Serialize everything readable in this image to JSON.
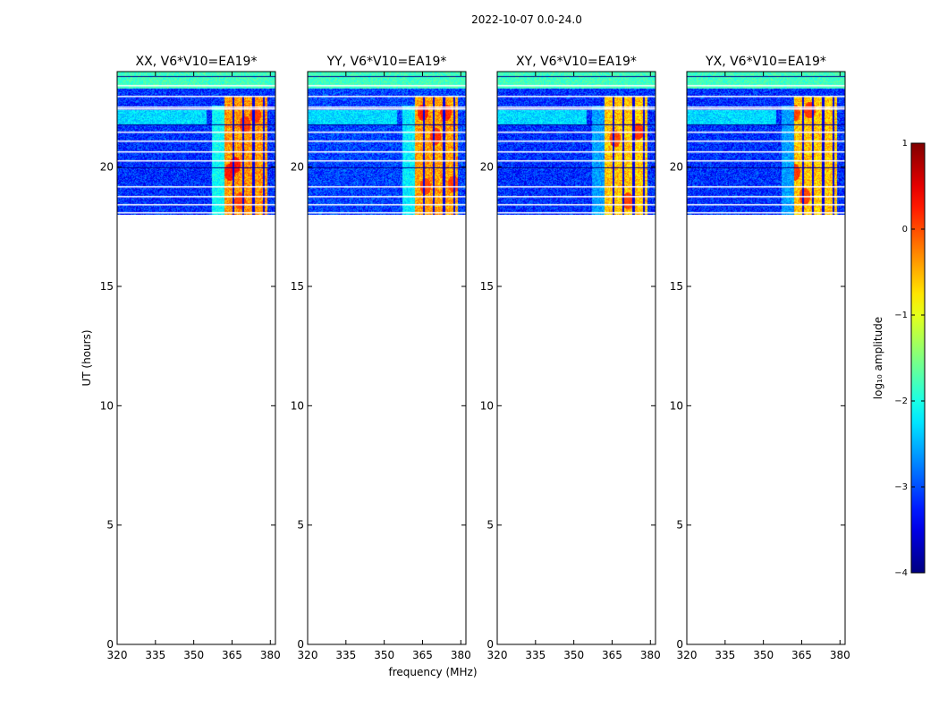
{
  "chart_data": {
    "type": "heatmap",
    "suptitle": "2022-10-07 0.0-24.0",
    "xlabel": "frequency (MHz)",
    "ylabel": "UT (hours)",
    "xlim": [
      320,
      382
    ],
    "ylim": [
      0,
      24
    ],
    "xticks": [
      320,
      335,
      350,
      365,
      380
    ],
    "yticks": [
      0,
      5,
      10,
      15,
      20
    ],
    "data_rows_hours": [
      18.0,
      24.0
    ],
    "panels": [
      {
        "title": "XX, V6*V10=EA19*",
        "background_log10": -3.15,
        "band_lowfreq_log10": -2.1,
        "band_highfreq_log10": -0.35,
        "hot_spots": [
          [
            366,
            20.1,
            0.3
          ],
          [
            364,
            19.8,
            0.25
          ],
          [
            370,
            21.8,
            0.1
          ],
          [
            374,
            22.2,
            0.1
          ],
          [
            368,
            18.6,
            0.05
          ]
        ]
      },
      {
        "title": "YY, V6*V10=EA19*",
        "background_log10": -3.05,
        "band_lowfreq_log10": -2.2,
        "band_highfreq_log10": -0.4,
        "hot_spots": [
          [
            365,
            22.3,
            0.2
          ],
          [
            370,
            21.3,
            0.15
          ],
          [
            374,
            22.3,
            0.2
          ],
          [
            377,
            19.3,
            0.05
          ],
          [
            366,
            19.2,
            0.05
          ]
        ]
      },
      {
        "title": "XY, V6*V10=EA19*",
        "background_log10": -3.15,
        "band_lowfreq_log10": -2.6,
        "band_highfreq_log10": -0.6,
        "hot_spots": [
          [
            366,
            21.2,
            0.05
          ],
          [
            371,
            18.6,
            0.05
          ],
          [
            375,
            21.5,
            0.1
          ]
        ]
      },
      {
        "title": "YX, V6*V10=EA19*",
        "background_log10": -3.15,
        "band_lowfreq_log10": -2.6,
        "band_highfreq_log10": -0.6,
        "hot_spots": [
          [
            362,
            22.3,
            0.05
          ],
          [
            368,
            22.4,
            0.1
          ],
          [
            362,
            19.8,
            0.1
          ],
          [
            366,
            18.8,
            0.05
          ]
        ]
      }
    ],
    "colorbar": {
      "label": "log₁₀ amplitude",
      "colormap": "jet",
      "range": [
        -4,
        1
      ],
      "ticks": [
        "1",
        "0",
        "−1",
        "−2",
        "−3",
        "−4"
      ]
    }
  }
}
